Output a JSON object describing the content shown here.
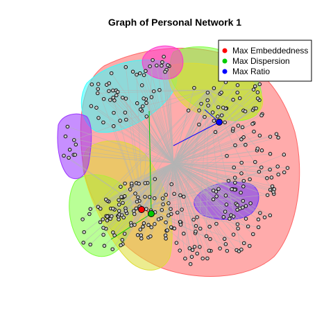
{
  "chart": {
    "title": "Graph of Personal Network  1",
    "legend": {
      "placement": "top-right",
      "entries": [
        {
          "label": "Max Embeddedness",
          "color": "#ff0000"
        },
        {
          "label": "Max Dispersion",
          "color": "#00cc00"
        },
        {
          "label": "Max Ratio",
          "color": "#0000ff"
        }
      ]
    },
    "colors": {
      "edge": "#b4b4b4",
      "node_fill": "#c8c8c8",
      "node_stroke": "#000000",
      "highlight_embeddedness": "#ff0000",
      "highlight_dispersion": "#00cc00",
      "highlight_ratio": "#0000ff"
    },
    "communities": [
      {
        "name": "community-red",
        "color": "#ff6666"
      },
      {
        "name": "community-green",
        "color": "#7fff3f"
      },
      {
        "name": "community-yellow",
        "color": "#dddd33"
      },
      {
        "name": "community-cyan",
        "color": "#33ffff"
      },
      {
        "name": "community-pink",
        "color": "#ff33cc"
      },
      {
        "name": "community-purple-left",
        "color": "#9933ff"
      },
      {
        "name": "community-purple-right",
        "color": "#6633ff"
      }
    ]
  }
}
